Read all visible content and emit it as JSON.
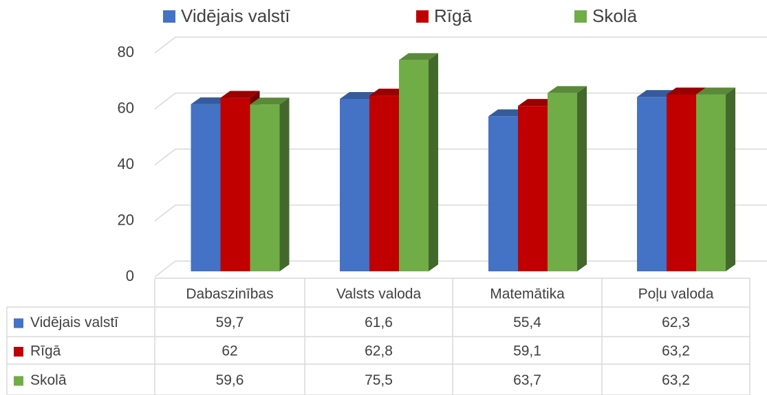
{
  "chart_data": {
    "type": "bar3d",
    "categories": [
      "Dabaszinības",
      "Valsts valoda",
      "Matemātika",
      "Poļu valoda"
    ],
    "series": [
      {
        "name": "Vidējais valstī",
        "color": "#4472c4",
        "values": [
          59.7,
          61.6,
          55.4,
          62.3
        ],
        "value_labels": [
          "59,7",
          "61,6",
          "55,4",
          "62,3"
        ]
      },
      {
        "name": "Rīgā",
        "color": "#c00000",
        "values": [
          62,
          62.8,
          59.1,
          63.2
        ],
        "value_labels": [
          "62",
          "62,8",
          "59,1",
          "63,2"
        ]
      },
      {
        "name": "Skolā",
        "color": "#70ad47",
        "values": [
          59.6,
          75.5,
          63.7,
          63.2
        ],
        "value_labels": [
          "59,6",
          "75,5",
          "63,7",
          "63,2"
        ]
      }
    ],
    "ylim": [
      0,
      80
    ],
    "yticks": [
      0,
      20,
      40,
      60,
      80
    ],
    "grid": true,
    "legend": "top",
    "data_table": true
  }
}
